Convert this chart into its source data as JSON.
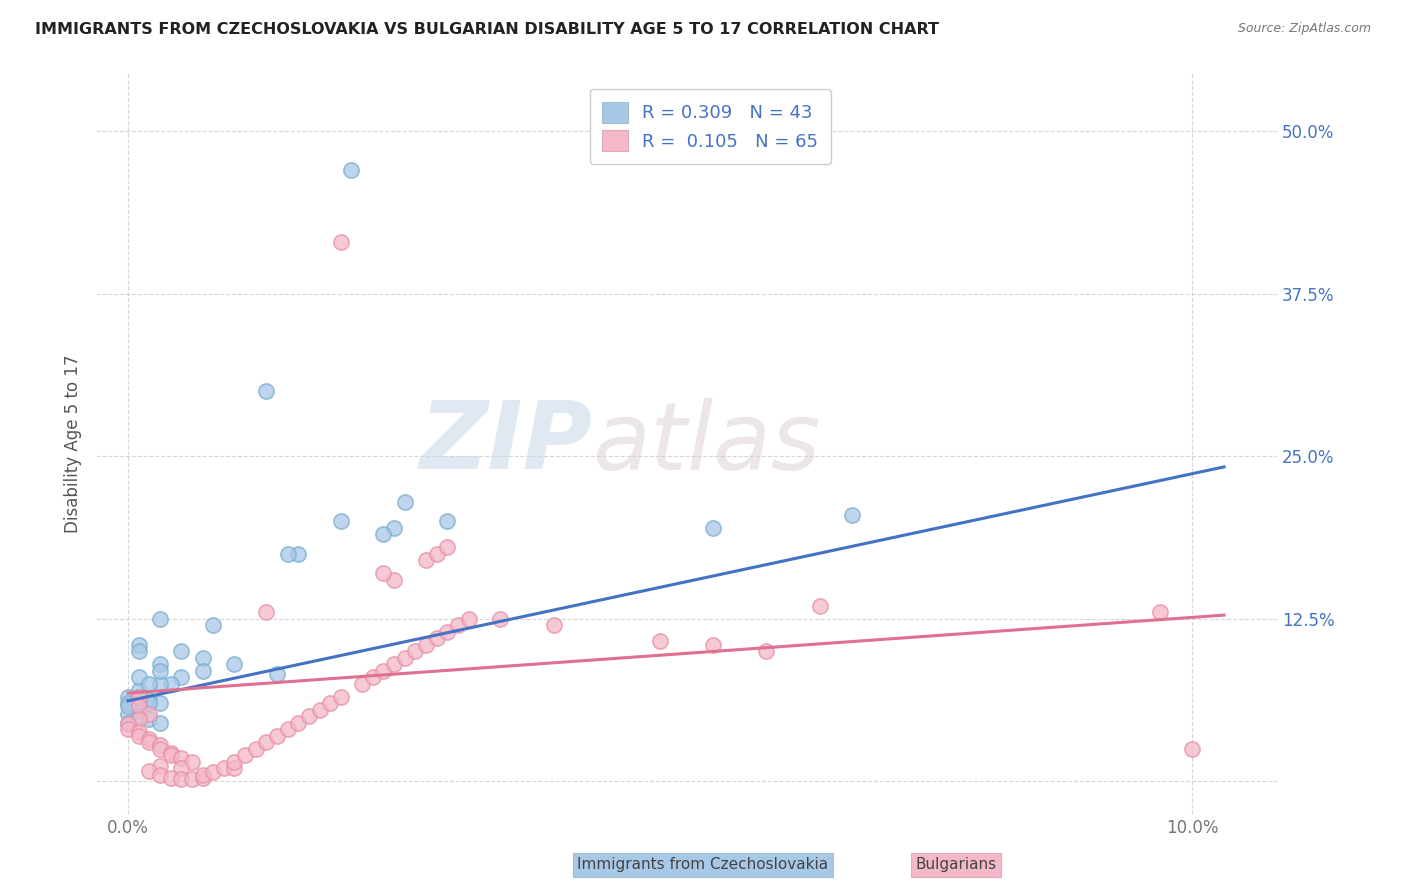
{
  "title": "IMMIGRANTS FROM CZECHOSLOVAKIA VS BULGARIAN DISABILITY AGE 5 TO 17 CORRELATION CHART",
  "source": "Source: ZipAtlas.com",
  "ylabel": "Disability Age 5 to 17",
  "y_ticks": [
    0.0,
    0.125,
    0.25,
    0.375,
    0.5
  ],
  "y_tick_labels": [
    "",
    "12.5%",
    "25.0%",
    "37.5%",
    "50.0%"
  ],
  "x_ticks": [
    0.0,
    0.1
  ],
  "x_tick_labels": [
    "0.0%",
    "10.0%"
  ],
  "xlim": [
    -0.003,
    0.108
  ],
  "ylim": [
    -0.025,
    0.545
  ],
  "legend_R1": "0.309",
  "legend_N1": "43",
  "legend_R2": "0.105",
  "legend_N2": "65",
  "color_blue": "#a8c8e8",
  "color_blue_edge": "#7aaed0",
  "color_pink": "#f4b8c8",
  "color_pink_edge": "#e890a8",
  "color_blue_line": "#4472c4",
  "color_pink_line": "#e07090",
  "color_blue_text": "#4472c4",
  "watermark_zip": "ZIP",
  "watermark_atlas": "atlas",
  "trendline1_x": [
    0.0,
    0.103
  ],
  "trendline1_y": [
    0.062,
    0.242
  ],
  "trendline2_x": [
    0.0,
    0.103
  ],
  "trendline2_y": [
    0.068,
    0.128
  ],
  "grid_color": "#cccccc",
  "background_color": "#ffffff",
  "series1_x": [
    0.021,
    0.013,
    0.003,
    0.001,
    0.007,
    0.01,
    0.007,
    0.005,
    0.004,
    0.003,
    0.001,
    0.0,
    0.001,
    0.002,
    0.003,
    0.002,
    0.001,
    0.001,
    0.0,
    0.001,
    0.002,
    0.003,
    0.02,
    0.016,
    0.015,
    0.005,
    0.055,
    0.003,
    0.003,
    0.001,
    0.002,
    0.001,
    0.0,
    0.0,
    0.014,
    0.0,
    0.068,
    0.03,
    0.025,
    0.024,
    0.026,
    0.001,
    0.008
  ],
  "series1_y": [
    0.47,
    0.3,
    0.125,
    0.105,
    0.095,
    0.09,
    0.085,
    0.08,
    0.075,
    0.075,
    0.07,
    0.065,
    0.065,
    0.063,
    0.06,
    0.06,
    0.058,
    0.055,
    0.052,
    0.05,
    0.048,
    0.045,
    0.2,
    0.175,
    0.175,
    0.1,
    0.195,
    0.09,
    0.085,
    0.08,
    0.075,
    0.065,
    0.06,
    0.058,
    0.083,
    0.045,
    0.205,
    0.2,
    0.195,
    0.19,
    0.215,
    0.1,
    0.12
  ],
  "series2_x": [
    0.02,
    0.001,
    0.001,
    0.002,
    0.001,
    0.0,
    0.0,
    0.001,
    0.001,
    0.002,
    0.002,
    0.003,
    0.003,
    0.004,
    0.004,
    0.005,
    0.006,
    0.005,
    0.003,
    0.002,
    0.003,
    0.004,
    0.005,
    0.006,
    0.007,
    0.007,
    0.008,
    0.009,
    0.01,
    0.01,
    0.011,
    0.012,
    0.013,
    0.014,
    0.015,
    0.016,
    0.017,
    0.018,
    0.019,
    0.02,
    0.022,
    0.023,
    0.024,
    0.025,
    0.026,
    0.027,
    0.028,
    0.029,
    0.03,
    0.031,
    0.032,
    0.028,
    0.029,
    0.03,
    0.025,
    0.024,
    0.05,
    0.055,
    0.06,
    0.065,
    0.097,
    0.1,
    0.013,
    0.035,
    0.04
  ],
  "series2_y": [
    0.415,
    0.065,
    0.058,
    0.052,
    0.048,
    0.044,
    0.04,
    0.038,
    0.035,
    0.033,
    0.03,
    0.028,
    0.025,
    0.022,
    0.02,
    0.018,
    0.015,
    0.01,
    0.012,
    0.008,
    0.005,
    0.003,
    0.002,
    0.002,
    0.003,
    0.005,
    0.007,
    0.01,
    0.01,
    0.015,
    0.02,
    0.025,
    0.03,
    0.035,
    0.04,
    0.045,
    0.05,
    0.055,
    0.06,
    0.065,
    0.075,
    0.08,
    0.085,
    0.09,
    0.095,
    0.1,
    0.105,
    0.11,
    0.115,
    0.12,
    0.125,
    0.17,
    0.175,
    0.18,
    0.155,
    0.16,
    0.108,
    0.105,
    0.1,
    0.135,
    0.13,
    0.025,
    0.13,
    0.125,
    0.12
  ]
}
